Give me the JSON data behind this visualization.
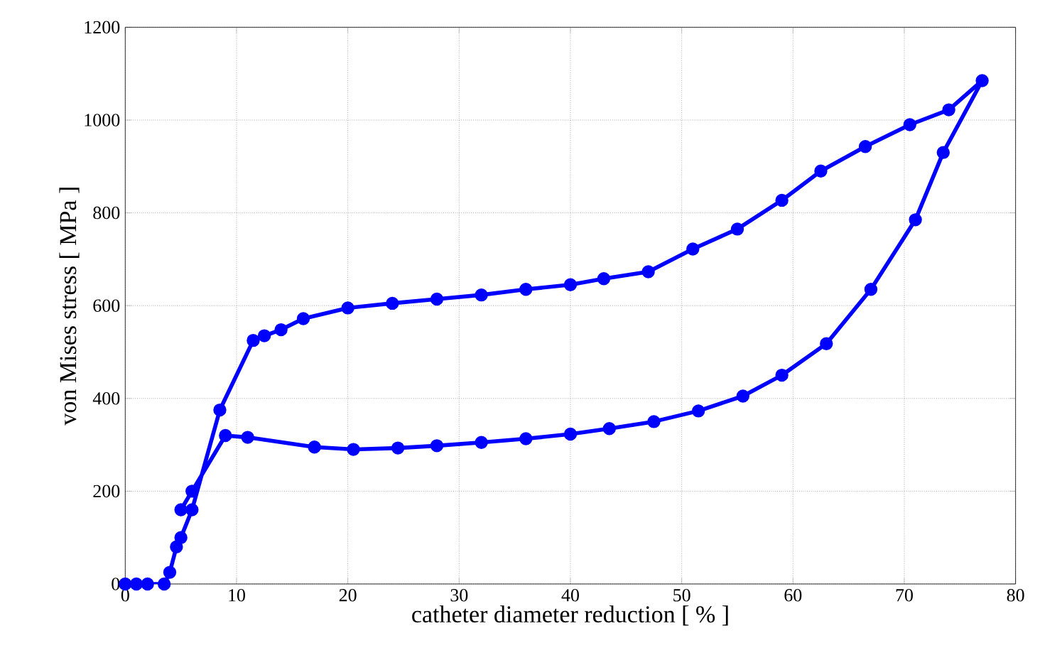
{
  "chart_data": {
    "type": "line",
    "xlabel": "catheter diameter reduction   [ % ]",
    "ylabel": "von Mises stress   [ MPa ]",
    "x": [
      0,
      1,
      2,
      3.5,
      4,
      4.6,
      5,
      6,
      8.5,
      11.5,
      12.5,
      14,
      16,
      20,
      24,
      28,
      32,
      36,
      40,
      43,
      47,
      51,
      55,
      59,
      62.5,
      66.5,
      70.5,
      74,
      77,
      73.5,
      71,
      67,
      63,
      59,
      55.5,
      51.5,
      47.5,
      43.5,
      40,
      36,
      32,
      28,
      24.5,
      20.5,
      17,
      11,
      9,
      6,
      5
    ],
    "series": [
      {
        "color": "#0000ff",
        "values": [
          0,
          0,
          0,
          0,
          25,
          80,
          100,
          160,
          375,
          525,
          535,
          548,
          572,
          595,
          605,
          614,
          623,
          635,
          645,
          658,
          673,
          722,
          765,
          827,
          890,
          943,
          990,
          1022,
          1085,
          930,
          785,
          635,
          518,
          450,
          405,
          373,
          350,
          335,
          323,
          313,
          305,
          298,
          293,
          290,
          295,
          316,
          320,
          200,
          160
        ]
      }
    ],
    "xlim": [
      0,
      80
    ],
    "ylim": [
      0,
      1200
    ],
    "xticks": [
      0,
      10,
      20,
      30,
      40,
      50,
      60,
      70,
      80
    ],
    "yticks": [
      0,
      200,
      400,
      600,
      800,
      1000,
      1200
    ],
    "grid": true,
    "marker": "circle",
    "line_style": "solid"
  }
}
